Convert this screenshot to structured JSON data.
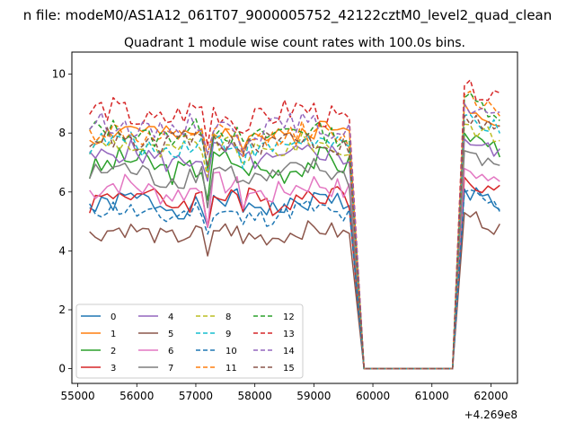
{
  "figure": {
    "suptitle": "n file: modeM0/AS1A12_061T07_9000005752_42122cztM0_level2_quad_clean",
    "x_offset_label": "+4.269e8"
  },
  "chart_data": {
    "type": "line",
    "title": "Quadrant 1 module wise count rates with 100.0s bins.",
    "xlabel": "",
    "ylabel": "",
    "x_offset": 426900000,
    "xlim": [
      54900,
      62450
    ],
    "ylim": [
      -0.5,
      10.75
    ],
    "xticks": [
      55000,
      56000,
      57000,
      58000,
      59000,
      60000,
      61000,
      62000
    ],
    "yticks": [
      0,
      2,
      4,
      6,
      8,
      10
    ],
    "xtick_labels": [
      "55000",
      "56000",
      "57000",
      "58000",
      "59000",
      "60000",
      "61000",
      "62000"
    ],
    "ytick_labels": [
      "0",
      "2",
      "4",
      "6",
      "8",
      "10"
    ],
    "legend": {
      "position": "lower-left",
      "columns": 4
    },
    "gap": {
      "drop_start": 59650,
      "zero_start": 59850,
      "zero_end": 61350,
      "rise_end": 61550
    },
    "series": [
      {
        "name": "0",
        "color": "#1f77b4",
        "dash": "solid",
        "base": 5.6,
        "amp": 0.35,
        "end": 5.3,
        "post": 6.1
      },
      {
        "name": "1",
        "color": "#ff7f0e",
        "dash": "solid",
        "base": 8.0,
        "amp": 0.35,
        "end": 7.6,
        "post": 9.0
      },
      {
        "name": "2",
        "color": "#2ca02c",
        "dash": "solid",
        "base": 6.9,
        "amp": 0.45,
        "end": 6.3,
        "post": 8.0
      },
      {
        "name": "3",
        "color": "#d62728",
        "dash": "solid",
        "base": 5.8,
        "amp": 0.4,
        "end": 5.7,
        "post": 6.5
      },
      {
        "name": "4",
        "color": "#9467bd",
        "dash": "solid",
        "base": 7.2,
        "amp": 0.4,
        "end": 6.6,
        "post": 7.8
      },
      {
        "name": "5",
        "color": "#8c564b",
        "dash": "solid",
        "base": 4.6,
        "amp": 0.3,
        "end": 4.5,
        "post": 5.3
      },
      {
        "name": "6",
        "color": "#e377c2",
        "dash": "solid",
        "base": 6.1,
        "amp": 0.4,
        "end": 5.8,
        "post": 6.8
      },
      {
        "name": "7",
        "color": "#7f7f7f",
        "dash": "solid",
        "base": 6.6,
        "amp": 0.4,
        "end": 6.8,
        "post": 7.4
      },
      {
        "name": "8",
        "color": "#bcbd22",
        "dash": "dashed",
        "base": 7.5,
        "amp": 0.35,
        "end": 7.2,
        "post": 8.3
      },
      {
        "name": "9",
        "color": "#17becf",
        "dash": "dashed",
        "base": 7.6,
        "amp": 0.35,
        "end": 7.5,
        "post": 8.6
      },
      {
        "name": "10",
        "color": "#1f77b4",
        "dash": "dashed",
        "base": 5.3,
        "amp": 0.35,
        "end": 5.6,
        "post": 6.0
      },
      {
        "name": "11",
        "color": "#ff7f0e",
        "dash": "dashed",
        "base": 7.9,
        "amp": 0.35,
        "end": 7.7,
        "post": 9.3
      },
      {
        "name": "12",
        "color": "#2ca02c",
        "dash": "dashed",
        "base": 8.0,
        "amp": 0.35,
        "end": 8.2,
        "post": 9.2
      },
      {
        "name": "13",
        "color": "#d62728",
        "dash": "dashed",
        "base": 8.6,
        "amp": 0.45,
        "end": 8.3,
        "post": 9.6
      },
      {
        "name": "14",
        "color": "#9467bd",
        "dash": "dashed",
        "base": 8.2,
        "amp": 0.35,
        "end": 7.9,
        "post": 9.0
      },
      {
        "name": "15",
        "color": "#8c564b",
        "dash": "dashed",
        "base": 7.7,
        "amp": 0.35,
        "end": 7.6,
        "post": 8.6
      }
    ]
  }
}
